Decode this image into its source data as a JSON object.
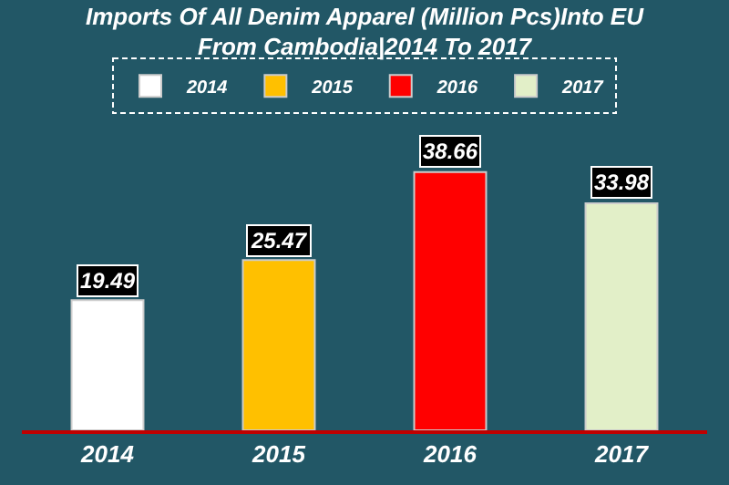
{
  "chart_data": {
    "type": "bar",
    "title": "Imports Of All Denim Apparel (Million Pcs)Into EU From Cambodia|2014 To 2017",
    "categories": [
      "2014",
      "2015",
      "2016",
      "2017"
    ],
    "series": [
      {
        "name": "2014",
        "color": "#ffffff",
        "values": [
          19.49,
          null,
          null,
          null
        ]
      },
      {
        "name": "2015",
        "color": "#ffc000",
        "values": [
          null,
          25.47,
          null,
          null
        ]
      },
      {
        "name": "2016",
        "color": "#ff0000",
        "values": [
          null,
          null,
          38.66,
          null
        ]
      },
      {
        "name": "2017",
        "color": "#e2efc8",
        "values": [
          null,
          null,
          null,
          33.98
        ]
      }
    ],
    "data_labels": true,
    "legend": "top"
  }
}
